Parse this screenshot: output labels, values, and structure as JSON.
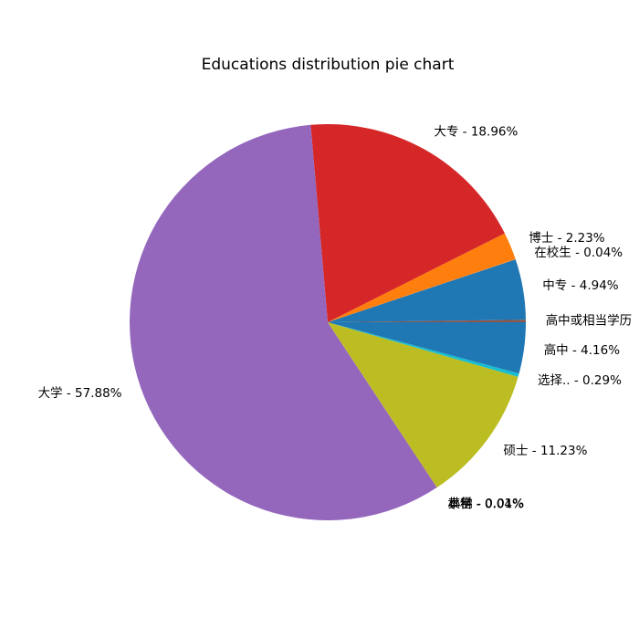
{
  "chart_data": {
    "type": "pie",
    "title": "Educations distribution pie chart",
    "start_angle_deg": 0,
    "direction": "counterclockwise",
    "slices": [
      {
        "label": "高中或相当学历",
        "value": 0.2,
        "color": "#8c564b",
        "display": "高中或相当学历"
      },
      {
        "label": "中专",
        "value": 4.94,
        "color": "#1f77b4",
        "display": "中专 - 4.94%"
      },
      {
        "label": "在校生",
        "value": 0.04,
        "color": "#ff7f0e",
        "display": "在校生 - 0.04%"
      },
      {
        "label": "博士",
        "value": 2.23,
        "color": "#ff7f0e",
        "display": "博士 - 2.23%"
      },
      {
        "label": "大专",
        "value": 18.96,
        "color": "#d62728",
        "display": "大专 - 18.96%"
      },
      {
        "label": "大学",
        "value": 57.88,
        "color": "#9467bd",
        "display": "大学 - 57.88%"
      },
      {
        "label": "本科",
        "value": 0.04,
        "color": "#8c564b",
        "display": "本科 - 0.04%"
      },
      {
        "label": "其他",
        "value": 0.01,
        "color": "#e377c2",
        "display": "其他 - 0.01%"
      },
      {
        "label": "小学",
        "value": 0.01,
        "color": "#7f7f7f",
        "display": "小学 - 0.01%"
      },
      {
        "label": "硕士",
        "value": 11.23,
        "color": "#bcbd22",
        "display": "硕士 - 11.23%"
      },
      {
        "label": "选择..",
        "value": 0.29,
        "color": "#17becf",
        "display": "选择.. - 0.29%"
      },
      {
        "label": "高中",
        "value": 4.16,
        "color": "#1f77b4",
        "display": "高中 - 4.16%"
      }
    ]
  }
}
